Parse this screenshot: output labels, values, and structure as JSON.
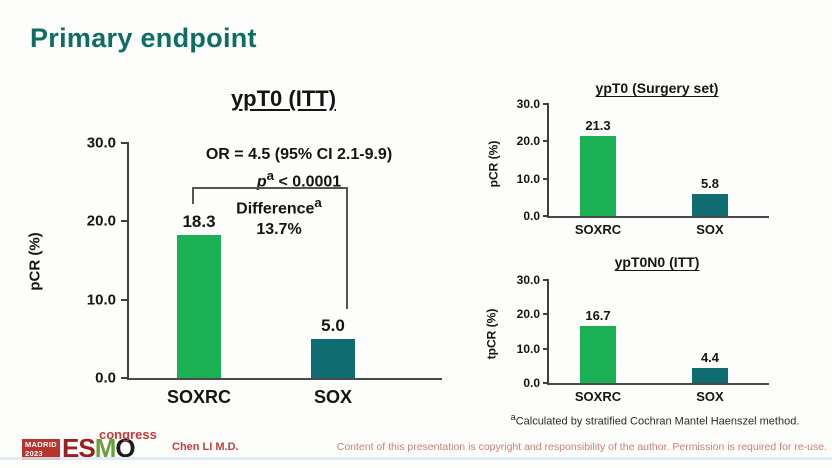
{
  "slide": {
    "title": "Primary endpoint",
    "author": "Chen LI M.D.",
    "copyright": "Content of this presentation is copyright and responsibility of the author. Permission is required for re-use.",
    "footnote_sup": "a",
    "footnote_text": "Calculated by stratified Cochran Mantel Haenszel method.",
    "logo": {
      "city": "MADRID",
      "year": "2023",
      "letters": [
        "E",
        "S",
        "M",
        "O"
      ],
      "suffix": "congress"
    }
  },
  "colors": {
    "title_teal": "#0e6e63",
    "soxrc_bar": "#1ab054",
    "sox_bar": "#0f6d72",
    "author_red": "#c0403c",
    "copyright_red": "#d07d7a",
    "esmo_box": "#b7352c",
    "esmo_red": "#9c1f1f",
    "esmo_green": "#69a03c",
    "esmo_black": "#1c1c1c",
    "congress_red": "#c23b34",
    "bottom_strip_blue": "#d9e7f4"
  },
  "chart_data": [
    {
      "type": "bar",
      "title": "ypT0 (ITT)",
      "ylabel": "pCR (%)",
      "ylim": [
        0,
        30
      ],
      "y_ticks": [
        "30.0",
        "20.0",
        "10.0",
        "0.0"
      ],
      "grid": false,
      "legend": "none",
      "categories": [
        "SOXRC",
        "SOX"
      ],
      "values": [
        18.3,
        5.0
      ],
      "value_labels": [
        "18.3",
        "5.0"
      ],
      "annotations": {
        "or_line": "OR = 4.5 (95% CI 2.1-9.9)",
        "p_var": "p",
        "p_sup": "a",
        "p_rest": " < 0.0001",
        "difference_label": "Difference",
        "difference_sup": "a",
        "difference_value": "13.7%"
      }
    },
    {
      "type": "bar",
      "title": "ypT0 (Surgery set)",
      "ylabel": "pCR (%)",
      "ylim": [
        0,
        30
      ],
      "y_ticks": [
        "30.0",
        "20.0",
        "10.0",
        "0.0"
      ],
      "grid": false,
      "legend": "none",
      "categories": [
        "SOXRC",
        "SOX"
      ],
      "values": [
        21.3,
        5.8
      ],
      "value_labels": [
        "21.3",
        "5.8"
      ]
    },
    {
      "type": "bar",
      "title": "ypT0N0 (ITT)",
      "ylabel": "tpCR (%)",
      "ylim": [
        0,
        30
      ],
      "y_ticks": [
        "30.0",
        "20.0",
        "10.0",
        "0.0"
      ],
      "grid": false,
      "legend": "none",
      "categories": [
        "SOXRC",
        "SOX"
      ],
      "values": [
        16.7,
        4.4
      ],
      "value_labels": [
        "16.7",
        "4.4"
      ]
    }
  ]
}
